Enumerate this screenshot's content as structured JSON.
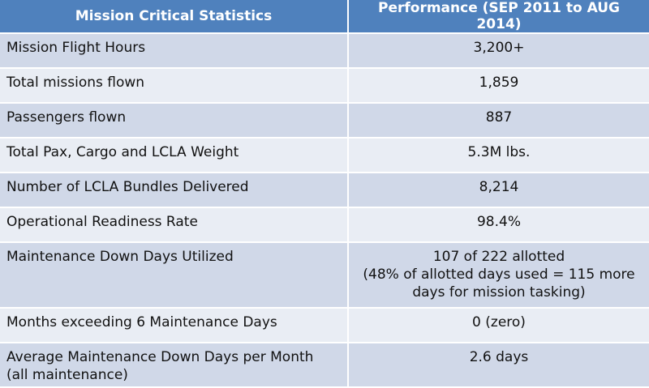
{
  "header": {
    "col1": "Mission Critical Statistics",
    "col2": "Performance  (SEP 2011 to AUG 2014)"
  },
  "rows": [
    {
      "label": "Mission Flight Hours",
      "value": "3,200+"
    },
    {
      "label": "Total missions flown",
      "value": "1,859"
    },
    {
      "label": "Passengers flown",
      "value": "887"
    },
    {
      "label": "Total Pax, Cargo and LCLA Weight",
      "value": "5.3M lbs."
    },
    {
      "label": "Number of LCLA Bundles Delivered",
      "value": "8,214"
    },
    {
      "label": "Operational Readiness Rate",
      "value": "98.4%"
    },
    {
      "label": "Maintenance Down Days Utilized",
      "value_lines": [
        "107 of 222 allotted",
        "(48% of allotted days used = 115 more",
        "days for mission tasking)"
      ]
    },
    {
      "label": "Months exceeding 6 Maintenance Days",
      "value": "0 (zero)"
    },
    {
      "label_lines": [
        "Average Maintenance Down Days per Month",
        "(all maintenance)"
      ],
      "value": "2.6 days"
    }
  ]
}
